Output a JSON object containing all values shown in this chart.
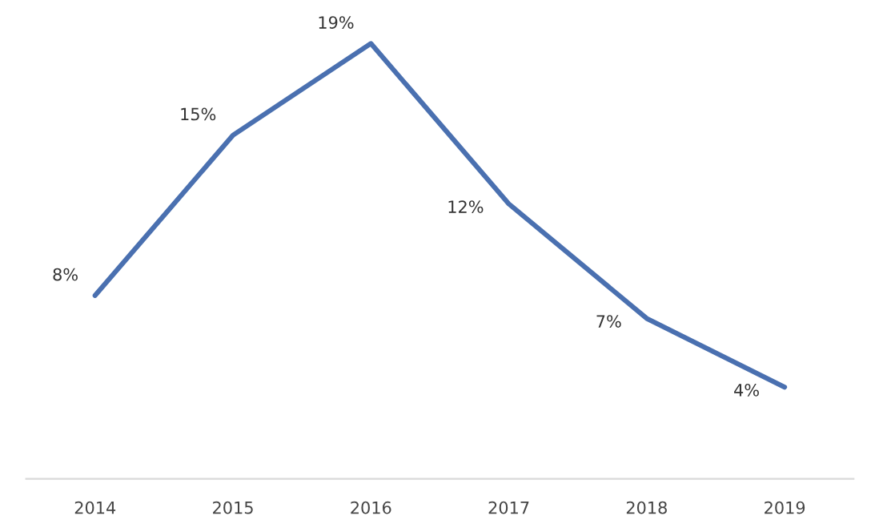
{
  "chart_data": {
    "type": "line",
    "categories": [
      "2014",
      "2015",
      "2016",
      "2017",
      "2018",
      "2019"
    ],
    "series": [
      {
        "color": "#4a70b0",
        "values": [
          8,
          15,
          19,
          12,
          7,
          4
        ],
        "value_labels": [
          "8%",
          "15%",
          "19%",
          "12%",
          "7%",
          "4%"
        ]
      }
    ],
    "marker": "none",
    "line_style": "solid",
    "grid": false,
    "legend": false,
    "tick_labels": "x"
  }
}
